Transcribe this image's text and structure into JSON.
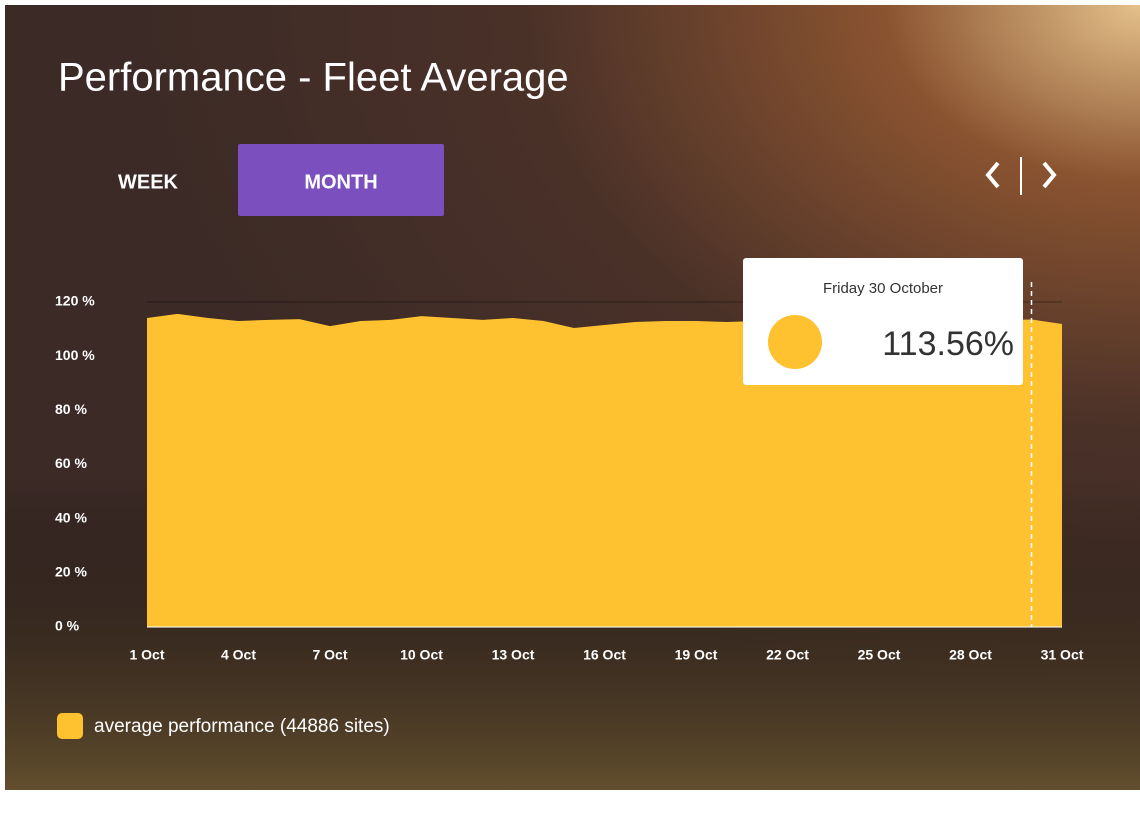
{
  "title": "Performance - Fleet Average",
  "tabs": [
    "WEEK",
    "MONTH"
  ],
  "tooltip": {
    "date": "Friday 30 October",
    "value": "113.56%"
  },
  "chart_data": {
    "type": "area",
    "categories": [
      "1 Oct",
      null,
      null,
      "4 Oct",
      null,
      null,
      "7 Oct",
      null,
      null,
      "10 Oct",
      null,
      null,
      "13 Oct",
      null,
      null,
      "16 Oct",
      null,
      null,
      "19 Oct",
      null,
      null,
      "22 Oct",
      null,
      null,
      "25 Oct",
      null,
      null,
      "28 Oct",
      null,
      null,
      "31 Oct"
    ],
    "series": [
      {
        "name": "average performance (44886 sites)",
        "color": "#fec12f",
        "values": [
          114.1,
          115.6,
          114.1,
          113.0,
          113.4,
          113.7,
          111.1,
          113.0,
          113.4,
          114.8,
          114.1,
          113.4,
          114.1,
          113.0,
          110.4,
          111.5,
          112.6,
          113.0,
          113.0,
          112.6,
          113.0,
          113.0,
          113.0,
          113.0,
          113.0,
          113.0,
          113.0,
          113.0,
          113.2,
          113.56,
          111.9
        ]
      }
    ],
    "ylim": [
      0,
      120
    ],
    "yticks": [
      {
        "value": 0,
        "label": "0 %"
      },
      {
        "value": 20,
        "label": "20 %"
      },
      {
        "value": 40,
        "label": "40 %"
      },
      {
        "value": 60,
        "label": "60 %"
      },
      {
        "value": 80,
        "label": "80 %"
      },
      {
        "value": 100,
        "label": "100 %"
      },
      {
        "value": 120,
        "label": "120 %"
      }
    ],
    "grid": true
  }
}
